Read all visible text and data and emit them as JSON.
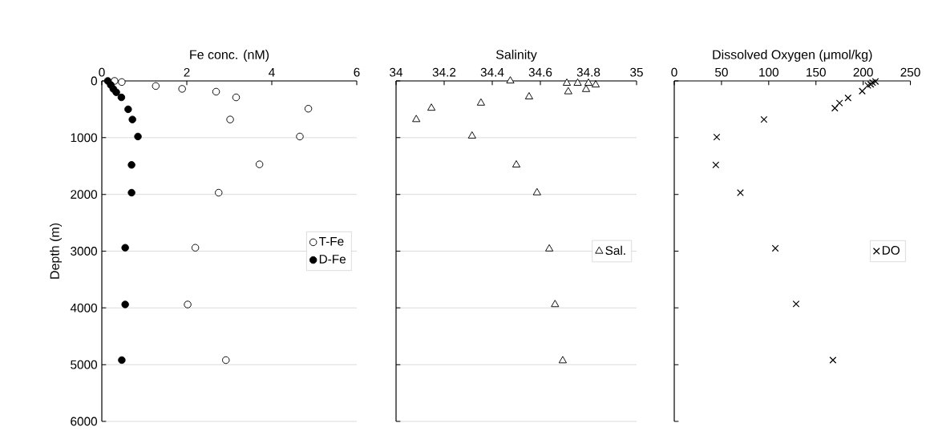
{
  "chart_data": [
    {
      "type": "scatter",
      "xlabel": "Fe conc. (nM)",
      "ylabel": "Depth (m)",
      "xlim": [
        0,
        6
      ],
      "xticks": [
        0,
        2,
        4,
        6
      ],
      "ylim": [
        6000,
        0
      ],
      "yticks": [
        0,
        1000,
        2000,
        3000,
        4000,
        5000,
        6000
      ],
      "grid": "y",
      "legend": "right",
      "series": [
        {
          "name": "T-Fe",
          "marker": "circle",
          "color": "#ffffff",
          "x": [
            0.3,
            0.47,
            1.27,
            1.89,
            2.69,
            3.16,
            4.86,
            3.02,
            4.66,
            3.71,
            2.75,
            2.2,
            2.02,
            2.92
          ],
          "values": [
            0,
            20,
            90,
            140,
            190,
            290,
            490,
            680,
            980,
            1470,
            1970,
            2940,
            3940,
            4920
          ]
        },
        {
          "name": "D-Fe",
          "marker": "circle",
          "color": "#000000",
          "x": [
            0.14,
            0.21,
            0.27,
            0.34,
            0.46,
            0.62,
            0.72,
            0.85,
            0.7,
            0.7,
            0.55,
            0.55,
            0.47
          ],
          "values": [
            0,
            70,
            140,
            200,
            290,
            500,
            680,
            980,
            1480,
            1970,
            2940,
            3940,
            4920
          ]
        }
      ]
    },
    {
      "type": "scatter",
      "xlabel": "Salinity",
      "xlim": [
        34,
        35
      ],
      "xticks": [
        34,
        34.2,
        34.4,
        34.6,
        34.8,
        35
      ],
      "ylim": [
        6000,
        0
      ],
      "yticks": [
        0,
        1000,
        2000,
        3000,
        4000,
        5000,
        6000
      ],
      "tick_labels": "x",
      "grid": "y",
      "legend": "right",
      "series": [
        {
          "name": "Sal.",
          "marker": "triangle",
          "color": "#ffffff",
          "x": [
            34.475,
            34.71,
            34.755,
            34.8,
            34.83,
            34.79,
            34.716,
            34.553,
            34.353,
            34.147,
            34.084,
            34.316,
            34.5,
            34.586,
            34.637,
            34.661,
            34.693
          ],
          "values": [
            0,
            40,
            40,
            40,
            70,
            150,
            190,
            280,
            390,
            480,
            680,
            970,
            1480,
            1970,
            2960,
            3940,
            4930
          ]
        }
      ]
    },
    {
      "type": "scatter",
      "xlabel": "Dissolved Oxygen (μmol/kg)",
      "xlim": [
        0,
        250
      ],
      "xticks": [
        0,
        50,
        100,
        150,
        200,
        250
      ],
      "ylim": [
        6000,
        0
      ],
      "yticks": [
        0,
        1000,
        2000,
        3000,
        4000,
        5000,
        6000
      ],
      "tick_labels": "x",
      "legend": "right",
      "series": [
        {
          "name": "DO",
          "marker": "cross",
          "color": "#000000",
          "x": [
            213,
            210,
            208,
            205,
            199,
            184,
            175,
            170,
            95,
            45,
            44,
            70,
            107,
            129,
            168
          ],
          "values": [
            10,
            30,
            60,
            80,
            180,
            300,
            390,
            480,
            680,
            990,
            1480,
            1970,
            2950,
            3930,
            4920
          ]
        }
      ]
    }
  ]
}
